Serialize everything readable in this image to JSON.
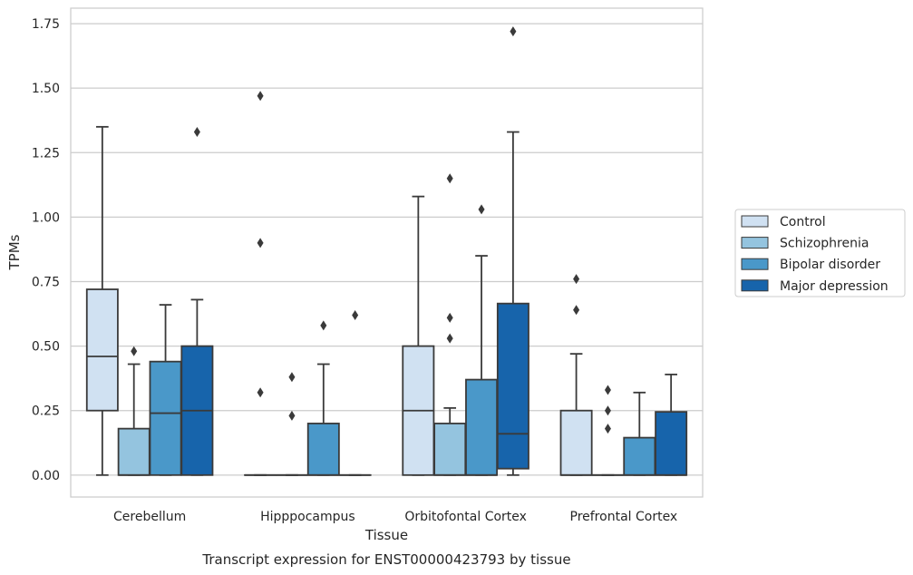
{
  "chart_data": {
    "type": "box",
    "title": "Transcript expression for ENST00000423793 by tissue",
    "xlabel": "Tissue",
    "ylabel": "TPMs",
    "ylim": [
      -0.085,
      1.81
    ],
    "yticks": [
      0.0,
      0.25,
      0.5,
      0.75,
      1.0,
      1.25,
      1.5,
      1.75
    ],
    "ytick_labels": [
      "0.00",
      "0.25",
      "0.50",
      "0.75",
      "1.00",
      "1.25",
      "1.50",
      "1.75"
    ],
    "grid": "horizontal",
    "legend_position": "right",
    "categories": [
      "Cerebellum",
      "Hipppocampus",
      "Orbitofontal Cortex",
      "Prefrontal Cortex"
    ],
    "series": [
      {
        "name": "Control",
        "color": "#d0e1f2",
        "boxes": [
          {
            "whislo": 0.0,
            "q1": 0.25,
            "med": 0.46,
            "q3": 0.72,
            "whishi": 1.35,
            "fliers": []
          },
          {
            "whislo": 0.0,
            "q1": 0.0,
            "med": 0.0,
            "q3": 0.0,
            "whishi": 0.0,
            "fliers": [
              0.32,
              0.9,
              1.47
            ]
          },
          {
            "whislo": 0.0,
            "q1": 0.0,
            "med": 0.25,
            "q3": 0.5,
            "whishi": 1.08,
            "fliers": []
          },
          {
            "whislo": 0.0,
            "q1": 0.0,
            "med": 0.0,
            "q3": 0.25,
            "whishi": 0.47,
            "fliers": [
              0.64,
              0.76
            ]
          }
        ]
      },
      {
        "name": "Schizophrenia",
        "color": "#94c4df",
        "boxes": [
          {
            "whislo": 0.0,
            "q1": 0.0,
            "med": 0.0,
            "q3": 0.18,
            "whishi": 0.43,
            "fliers": [
              0.48
            ]
          },
          {
            "whislo": 0.0,
            "q1": 0.0,
            "med": 0.0,
            "q3": 0.0,
            "whishi": 0.0,
            "fliers": [
              0.23,
              0.38
            ]
          },
          {
            "whislo": 0.0,
            "q1": 0.0,
            "med": 0.0,
            "q3": 0.2,
            "whishi": 0.26,
            "fliers": [
              0.53,
              0.61,
              1.15
            ]
          },
          {
            "whislo": 0.0,
            "q1": 0.0,
            "med": 0.0,
            "q3": 0.0,
            "whishi": 0.0,
            "fliers": [
              0.18,
              0.25,
              0.33
            ]
          }
        ]
      },
      {
        "name": "Bipolar disorder",
        "color": "#4a98c9",
        "boxes": [
          {
            "whislo": 0.0,
            "q1": 0.0,
            "med": 0.24,
            "q3": 0.44,
            "whishi": 0.66,
            "fliers": []
          },
          {
            "whislo": 0.0,
            "q1": 0.0,
            "med": 0.0,
            "q3": 0.2,
            "whishi": 0.43,
            "fliers": [
              0.58
            ]
          },
          {
            "whislo": 0.0,
            "q1": 0.0,
            "med": 0.0,
            "q3": 0.37,
            "whishi": 0.85,
            "fliers": [
              1.03
            ]
          },
          {
            "whislo": 0.0,
            "q1": 0.0,
            "med": 0.0,
            "q3": 0.145,
            "whishi": 0.32,
            "fliers": []
          }
        ]
      },
      {
        "name": "Major depression",
        "color": "#1764ab",
        "boxes": [
          {
            "whislo": 0.0,
            "q1": 0.0,
            "med": 0.25,
            "q3": 0.5,
            "whishi": 0.68,
            "fliers": [
              1.33
            ]
          },
          {
            "whislo": 0.0,
            "q1": 0.0,
            "med": 0.0,
            "q3": 0.0,
            "whishi": 0.0,
            "fliers": [
              0.62
            ]
          },
          {
            "whislo": 0.0,
            "q1": 0.025,
            "med": 0.16,
            "q3": 0.665,
            "whishi": 1.33,
            "fliers": [
              1.72
            ]
          },
          {
            "whislo": 0.0,
            "q1": 0.0,
            "med": 0.0,
            "q3": 0.245,
            "whishi": 0.39,
            "fliers": []
          }
        ]
      }
    ]
  }
}
